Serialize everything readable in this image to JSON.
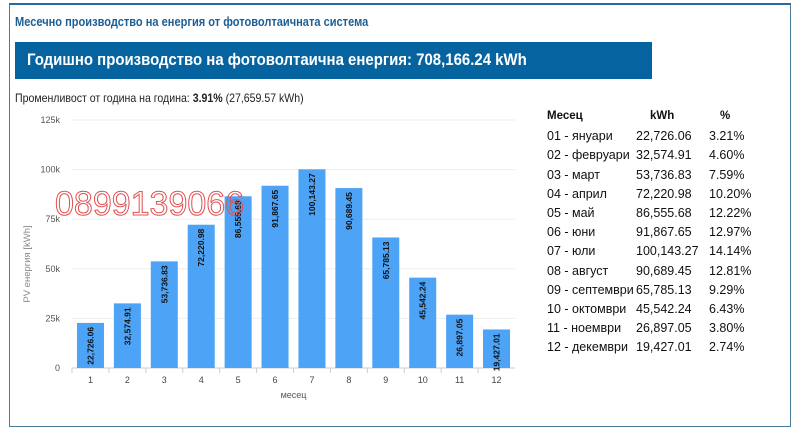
{
  "title": "Месечно производство на енергия от фотоволтаичната система",
  "banner": "Годишно производство на фотоволтаична енергия:  708,166.24 kWh",
  "yoy": {
    "label": "Променливост от година на година: ",
    "percent": "3.91%",
    "kwh": " (27,659.57 kWh)"
  },
  "watermark": "0899139066",
  "chart_data": {
    "type": "bar",
    "categories": [
      "1",
      "2",
      "3",
      "4",
      "5",
      "6",
      "7",
      "8",
      "9",
      "10",
      "11",
      "12"
    ],
    "values": [
      22726.06,
      32574.91,
      53736.83,
      72220.98,
      86555.68,
      91867.65,
      100143.27,
      90689.45,
      65785.13,
      45542.24,
      26897.05,
      19427.01
    ],
    "data_labels": [
      "22,726.06",
      "32,574.91",
      "53,736.83",
      "72,220.98",
      "86,555.68",
      "91,867.65",
      "100,143.27",
      "90,689.45",
      "65,785.13",
      "45,542.24",
      "26,897.05",
      "19,427.01"
    ],
    "xlabel": "месец",
    "ylabel": "PV енергия [kWh]",
    "ylim": [
      0,
      125000
    ],
    "yticks": [
      {
        "v": 0,
        "label": "0"
      },
      {
        "v": 25000,
        "label": "25k"
      },
      {
        "v": 50000,
        "label": "50k"
      },
      {
        "v": 75000,
        "label": "75k"
      },
      {
        "v": 100000,
        "label": "100k"
      },
      {
        "v": 125000,
        "label": "125k"
      }
    ],
    "grid": true,
    "bar_color": "#4da3f5"
  },
  "table": {
    "headers": [
      "Месец",
      "kWh",
      "%"
    ],
    "rows": [
      [
        "01 - януари",
        "22,726.06",
        "3.21%"
      ],
      [
        "02 - февруари",
        "32,574.91",
        "4.60%"
      ],
      [
        "03 - март",
        "53,736.83",
        "7.59%"
      ],
      [
        "04 - април",
        "72,220.98",
        "10.20%"
      ],
      [
        "05 - май",
        "86,555.68",
        "12.22%"
      ],
      [
        "06 - юни",
        "91,867.65",
        "12.97%"
      ],
      [
        "07 - юли",
        "100,143.27",
        "14.14%"
      ],
      [
        "08 - август",
        "90,689.45",
        "12.81%"
      ],
      [
        "09 - септември",
        "65,785.13",
        "9.29%"
      ],
      [
        "10 - октомври",
        "45,542.24",
        "6.43%"
      ],
      [
        "11 - ноември",
        "26,897.05",
        "3.80%"
      ],
      [
        "12 - декември",
        "19,427.01",
        "2.74%"
      ]
    ]
  }
}
